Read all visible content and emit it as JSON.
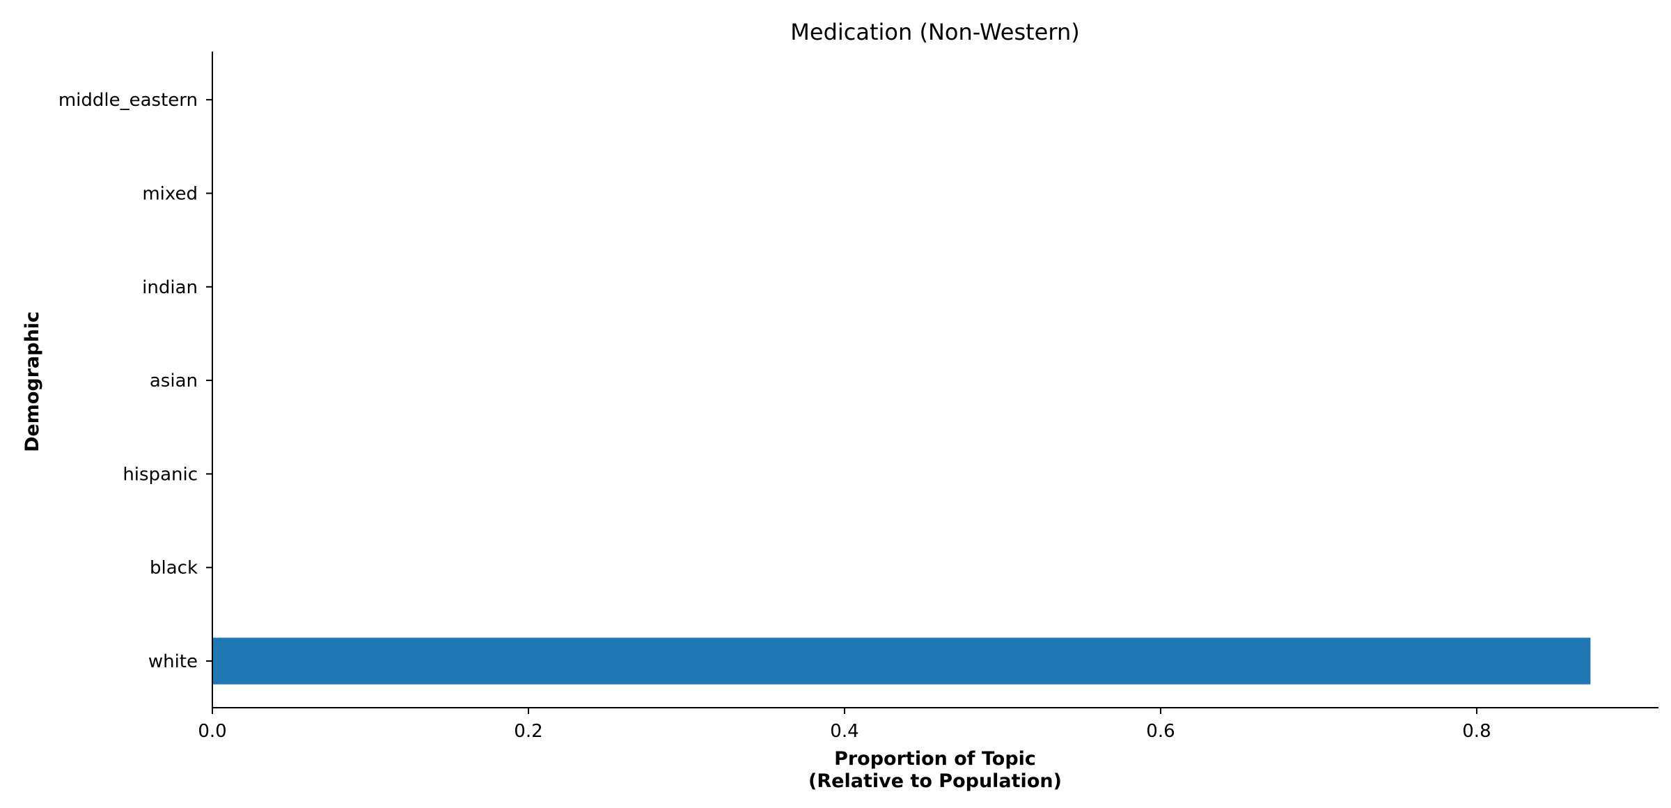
{
  "chart_data": {
    "type": "bar",
    "orientation": "horizontal",
    "title": "Medication (Non-Western)",
    "xlabel_line1": "Proportion of Topic",
    "xlabel_line2": "(Relative to Population)",
    "ylabel": "Demographic",
    "categories": [
      "white",
      "black",
      "hispanic",
      "asian",
      "indian",
      "mixed",
      "middle_eastern"
    ],
    "values": [
      0.872,
      0,
      0,
      0,
      0,
      0,
      0
    ],
    "xlim": [
      0,
      0.915
    ],
    "xticks": [
      0.0,
      0.2,
      0.4,
      0.6,
      0.8
    ],
    "xtick_labels": [
      "0.0",
      "0.2",
      "0.4",
      "0.6",
      "0.8"
    ],
    "bar_color": "#1f77b4",
    "grid": false,
    "legend": "none"
  }
}
